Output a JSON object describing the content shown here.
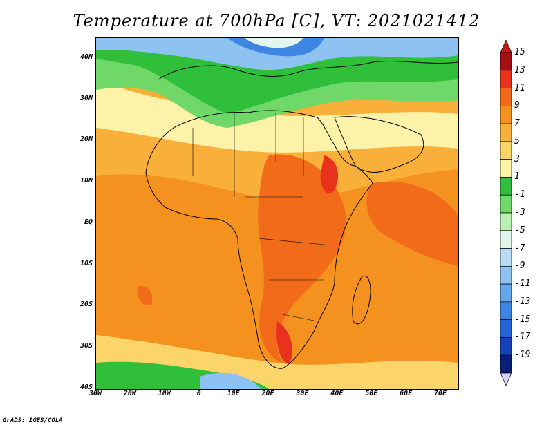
{
  "title": "Temperature at 700hPa [C], VT: 2021021412",
  "credit": "GrADS: IGES/COLA",
  "map": {
    "lon_range": [
      -30,
      75
    ],
    "lat_range": [
      -40,
      45
    ],
    "y_ticks": [
      {
        "value": 40,
        "label": "40N"
      },
      {
        "value": 30,
        "label": "30N"
      },
      {
        "value": 20,
        "label": "20N"
      },
      {
        "value": 10,
        "label": "10N"
      },
      {
        "value": 0,
        "label": "EQ"
      },
      {
        "value": -10,
        "label": "10S"
      },
      {
        "value": -20,
        "label": "20S"
      },
      {
        "value": -30,
        "label": "30S"
      },
      {
        "value": -40,
        "label": "40S"
      }
    ],
    "x_ticks": [
      {
        "value": -30,
        "label": "30W"
      },
      {
        "value": -20,
        "label": "20W"
      },
      {
        "value": -10,
        "label": "10W"
      },
      {
        "value": 0,
        "label": "0"
      },
      {
        "value": 10,
        "label": "10E"
      },
      {
        "value": 20,
        "label": "20E"
      },
      {
        "value": 30,
        "label": "30E"
      },
      {
        "value": 40,
        "label": "40E"
      },
      {
        "value": 50,
        "label": "50E"
      },
      {
        "value": 60,
        "label": "60E"
      },
      {
        "value": 70,
        "label": "70E"
      }
    ]
  },
  "colorbar": {
    "levels": [
      {
        "label": "15",
        "color": "#a50f15"
      },
      {
        "label": "13",
        "color": "#e8321e"
      },
      {
        "label": "11",
        "color": "#f26b1a"
      },
      {
        "label": "9",
        "color": "#f5921f"
      },
      {
        "label": "7",
        "color": "#f8b03a"
      },
      {
        "label": "5",
        "color": "#fbd56a"
      },
      {
        "label": "3",
        "color": "#fdf3a8"
      },
      {
        "label": "1",
        "color": "#2fbf3a"
      },
      {
        "label": "-1",
        "color": "#6fd869"
      },
      {
        "label": "-3",
        "color": "#b9f0b4"
      },
      {
        "label": "-5",
        "color": "#e2f6ee"
      },
      {
        "label": "-7",
        "color": "#b8dcf5"
      },
      {
        "label": "-9",
        "color": "#8ec2f0"
      },
      {
        "label": "-11",
        "color": "#64a6ec"
      },
      {
        "label": "-13",
        "color": "#3f86e4"
      },
      {
        "label": "-15",
        "color": "#2565d8"
      },
      {
        "label": "-17",
        "color": "#1343b8"
      },
      {
        "label": "-19",
        "color": "#0a1f78"
      }
    ],
    "top_color": "#c41818",
    "bottom_color": "#d6d4f4"
  }
}
